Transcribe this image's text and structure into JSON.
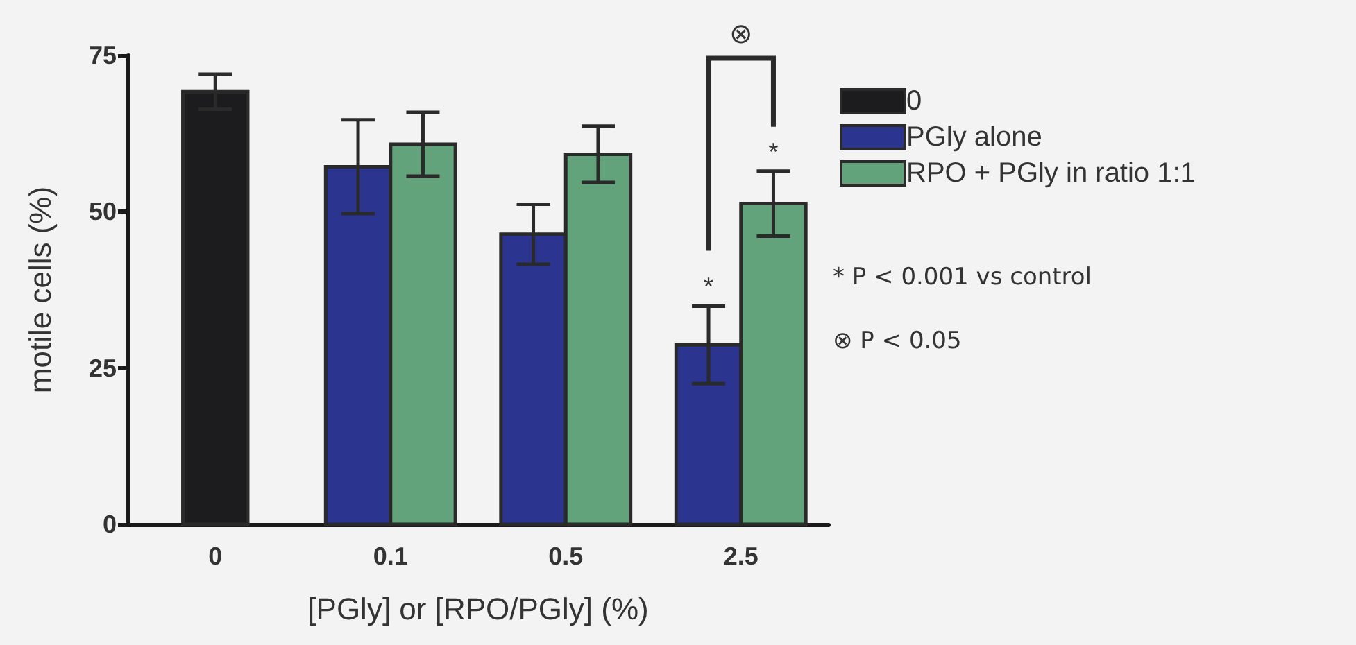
{
  "chart_data": {
    "type": "bar",
    "xlabel": "[PGly] or [RPO/PGly] (%)",
    "ylabel": "motile cells (%)",
    "categories": [
      "0",
      "0.1",
      "0.5",
      "2.5"
    ],
    "series": [
      {
        "name": "0",
        "color": "#1c1c1e",
        "values": [
          69.2,
          null,
          null,
          null
        ],
        "errors": [
          2.8,
          null,
          null,
          null
        ]
      },
      {
        "name": "PGly alone",
        "color": "#2b3590",
        "values": [
          null,
          57.2,
          46.4,
          28.7
        ],
        "errors": [
          null,
          7.5,
          4.8,
          6.2
        ]
      },
      {
        "name": "RPO + PGly in ratio 1:1",
        "color": "#62a37c",
        "values": [
          null,
          60.8,
          59.2,
          51.3
        ],
        "errors": [
          null,
          5.1,
          4.5,
          5.2
        ]
      }
    ],
    "ylim": [
      0,
      75
    ],
    "yticks": [
      0,
      25,
      50,
      75
    ],
    "grid": false,
    "legend": "right",
    "annotations": [
      "*",
      "*",
      "⊗",
      "* P < 0.001 vs control",
      "⊗ P < 0.05"
    ]
  }
}
